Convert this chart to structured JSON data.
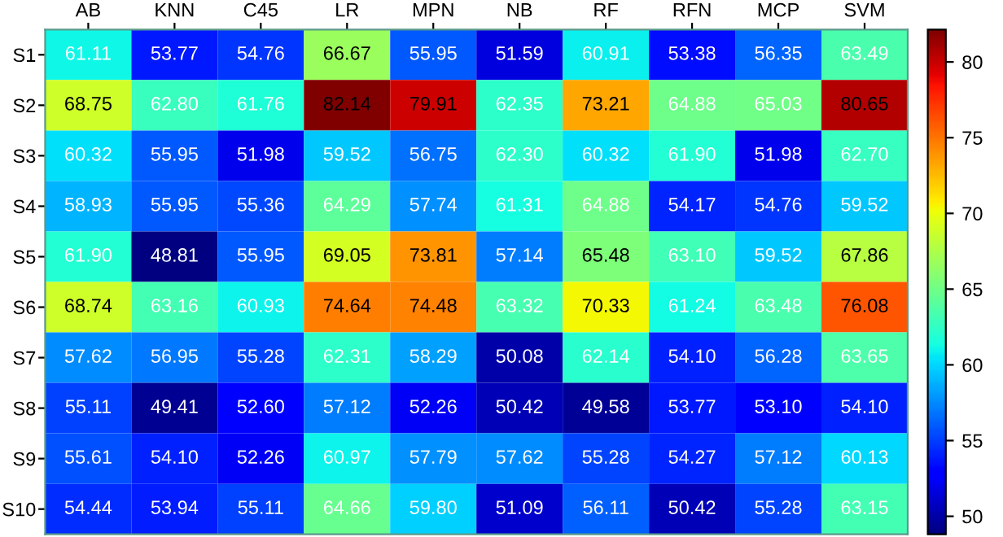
{
  "chart_data": {
    "type": "heatmap",
    "categories": [
      "AB",
      "KNN",
      "C45",
      "LR",
      "MPN",
      "NB",
      "RF",
      "RFN",
      "MCP",
      "SVM"
    ],
    "y_categories": [
      "S1",
      "S2",
      "S3",
      "S4",
      "S5",
      "S6",
      "S7",
      "S8",
      "S9",
      "S10"
    ],
    "cells": [
      [
        61.11,
        53.77,
        54.76,
        66.67,
        55.95,
        51.59,
        60.91,
        53.38,
        56.35,
        63.49
      ],
      [
        68.75,
        62.8,
        61.76,
        82.14,
        79.91,
        62.35,
        73.21,
        64.88,
        65.03,
        80.65
      ],
      [
        60.32,
        55.95,
        51.98,
        59.52,
        56.75,
        62.3,
        60.32,
        61.9,
        51.98,
        62.7
      ],
      [
        58.93,
        55.95,
        55.36,
        64.29,
        57.74,
        61.31,
        64.88,
        54.17,
        54.76,
        59.52
      ],
      [
        61.9,
        48.81,
        55.95,
        69.05,
        73.81,
        57.14,
        65.48,
        63.1,
        59.52,
        67.86
      ],
      [
        68.74,
        63.16,
        60.93,
        74.64,
        74.48,
        63.32,
        70.33,
        61.24,
        63.48,
        76.08
      ],
      [
        57.62,
        56.95,
        55.28,
        62.31,
        58.29,
        50.08,
        62.14,
        54.1,
        56.28,
        63.65
      ],
      [
        55.11,
        49.41,
        52.6,
        57.12,
        52.26,
        50.42,
        49.58,
        53.77,
        53.1,
        54.1
      ],
      [
        55.61,
        54.1,
        52.26,
        60.97,
        57.79,
        57.62,
        55.28,
        54.27,
        57.12,
        60.13
      ],
      [
        54.44,
        53.94,
        55.11,
        64.66,
        59.8,
        51.09,
        56.11,
        50.42,
        55.28,
        63.15
      ]
    ],
    "cell_labels": [
      [
        "61.11",
        "53.77",
        "54.76",
        "66.67",
        "55.95",
        "51.59",
        "60.91",
        "53.38",
        "56.35",
        "63.49"
      ],
      [
        "68.75",
        "62.80",
        "61.76",
        "82.14",
        "79.91",
        "62.35",
        "73.21",
        "64.88",
        "65.03",
        "80.65"
      ],
      [
        "60.32",
        "55.95",
        "51.98",
        "59.52",
        "56.75",
        "62.30",
        "60.32",
        "61.90",
        "51.98",
        "62.70"
      ],
      [
        "58.93",
        "55.95",
        "55.36",
        "64.29",
        "57.74",
        "61.31",
        "64.88",
        "54.17",
        "54.76",
        "59.52"
      ],
      [
        "61.90",
        "48.81",
        "55.95",
        "69.05",
        "73.81",
        "57.14",
        "65.48",
        "63.10",
        "59.52",
        "67.86"
      ],
      [
        "68.74",
        "63.16",
        "60.93",
        "74.64",
        "74.48",
        "63.32",
        "70.33",
        "61.24",
        "63.48",
        "76.08"
      ],
      [
        "57.62",
        "56.95",
        "55.28",
        "62.31",
        "58.29",
        "50.08",
        "62.14",
        "54.10",
        "56.28",
        "63.65"
      ],
      [
        "55.11",
        "49.41",
        "52.60",
        "57.12",
        "52.26",
        "50.42",
        "49.58",
        "53.77",
        "53.10",
        "54.10"
      ],
      [
        "55.61",
        "54.10",
        "52.26",
        "60.97",
        "57.79",
        "57.62",
        "55.28",
        "54.27",
        "57.12",
        "60.13"
      ],
      [
        "54.44",
        "53.94",
        "55.11",
        "64.66",
        "59.80",
        "51.09",
        "56.11",
        "50.42",
        "55.28",
        "63.15"
      ]
    ],
    "clim": [
      48.81,
      82.14
    ],
    "cticks": [
      50,
      55,
      60,
      65,
      70,
      75,
      80
    ]
  }
}
